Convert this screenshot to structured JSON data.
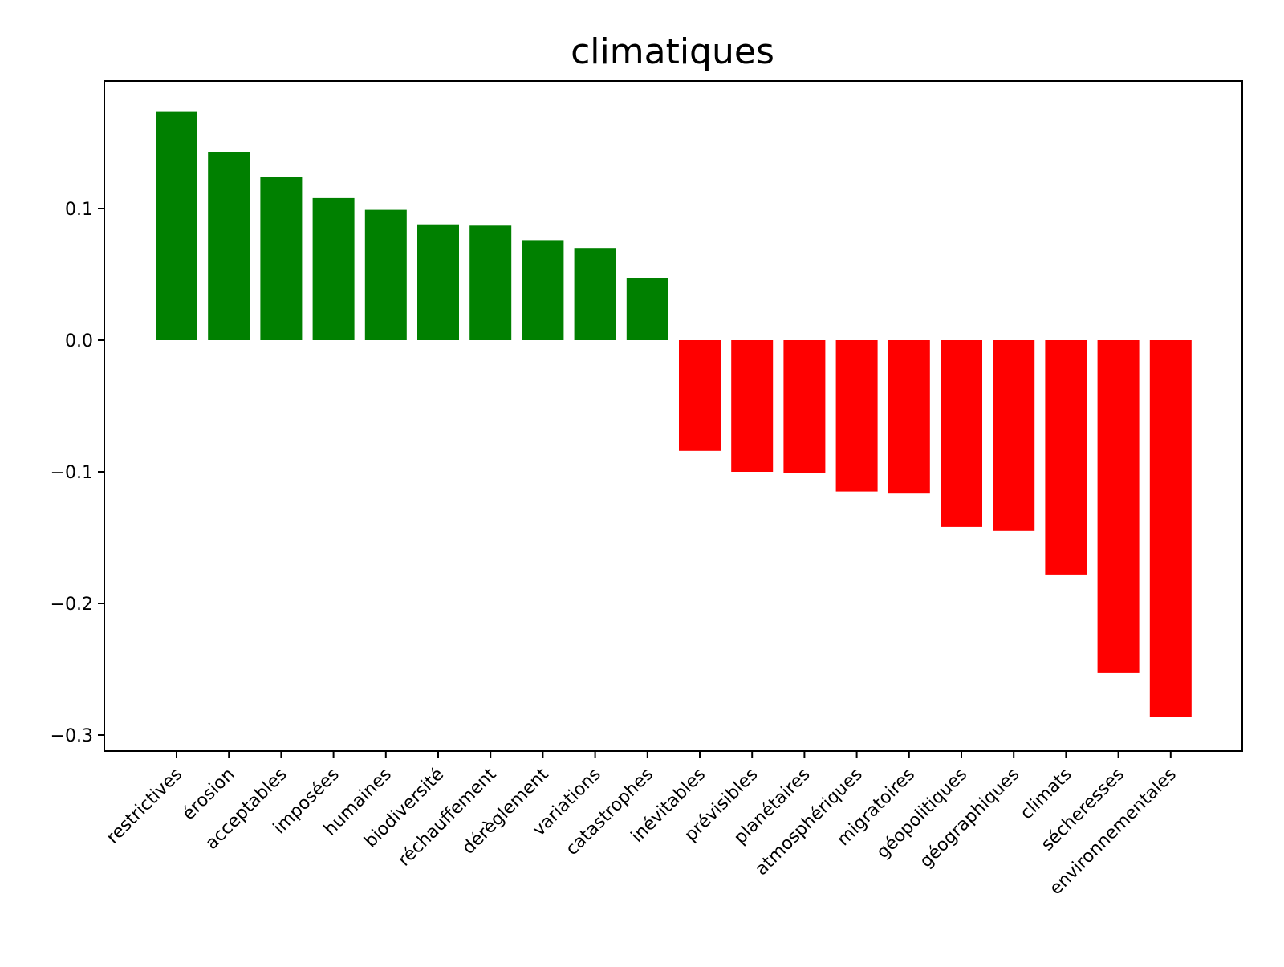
{
  "chart_data": {
    "type": "bar",
    "title": "climatiques",
    "xlabel": "",
    "ylabel": "",
    "ylim": [
      -0.31,
      0.195
    ],
    "yticks": [
      0.1,
      0.0,
      -0.1,
      -0.2,
      -0.3
    ],
    "ytick_labels": [
      "0.1",
      "0.0",
      "−0.1",
      "−0.2",
      "−0.3"
    ],
    "grid": false,
    "colors": {
      "positive": "#008000",
      "negative": "#ff0000"
    },
    "categories": [
      "restrictives",
      "érosion",
      "acceptables",
      "imposées",
      "humaines",
      "biodiversité",
      "réchauffement",
      "dérèglement",
      "variations",
      "catastrophes",
      "inévitables",
      "prévisibles",
      "planétaires",
      "atmosphériques",
      "migratoires",
      "géopolitiques",
      "géographiques",
      "climats",
      "sécheresses",
      "environnementales"
    ],
    "values": [
      0.174,
      0.143,
      0.124,
      0.108,
      0.099,
      0.088,
      0.087,
      0.076,
      0.07,
      0.047,
      -0.084,
      -0.1,
      -0.101,
      -0.115,
      -0.116,
      -0.142,
      -0.145,
      -0.178,
      -0.253,
      -0.286
    ]
  }
}
